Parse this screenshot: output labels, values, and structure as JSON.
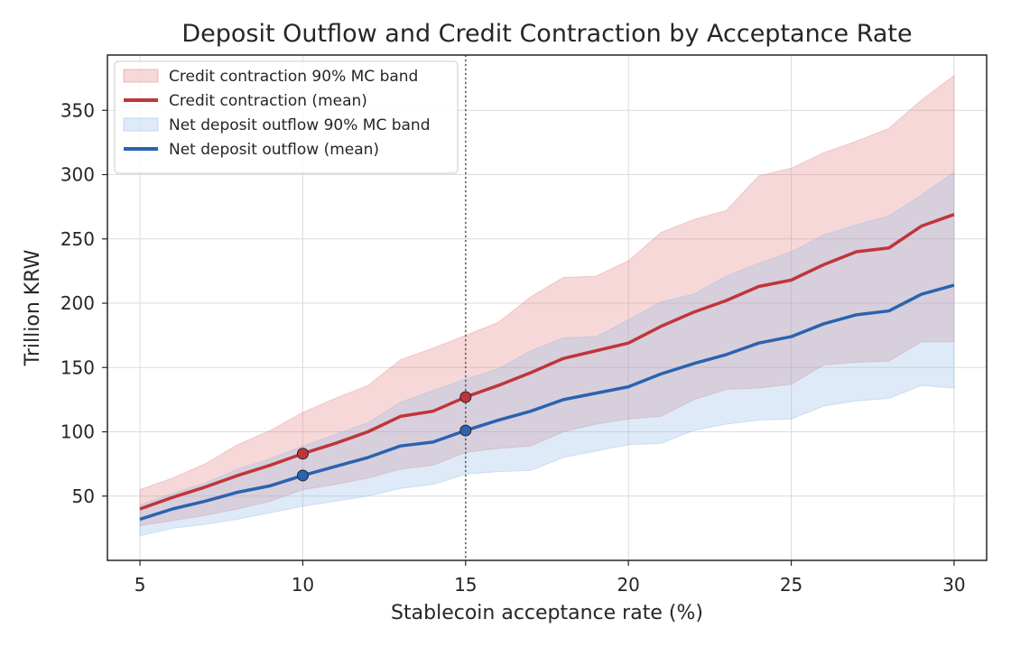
{
  "chart_data": {
    "type": "line",
    "title": "Deposit Outflow and Credit Contraction by Acceptance Rate",
    "xlabel": "Stablecoin acceptance rate (%)",
    "ylabel": "Trillion KRW",
    "xlim": [
      4,
      31
    ],
    "ylim": [
      0,
      393
    ],
    "xticks": [
      5,
      10,
      15,
      20,
      25,
      30
    ],
    "yticks": [
      50,
      100,
      150,
      200,
      250,
      300,
      350
    ],
    "grid": true,
    "legend_position": "top-left",
    "reference_line": {
      "x": 15,
      "style": "dotted"
    },
    "x": [
      5,
      6,
      7,
      8,
      9,
      10,
      11,
      12,
      13,
      14,
      15,
      16,
      17,
      18,
      19,
      20,
      21,
      22,
      23,
      24,
      25,
      26,
      27,
      28,
      29,
      30
    ],
    "series": [
      {
        "name": "Credit contraction (mean)",
        "color": "#c0353a",
        "values": [
          40,
          49,
          57,
          66,
          74,
          83,
          91,
          100,
          112,
          116,
          127,
          136,
          146,
          157,
          163,
          169,
          182,
          193,
          202,
          213,
          218,
          230,
          240,
          243,
          260,
          269
        ]
      },
      {
        "name": "Net deposit outflow (mean)",
        "color": "#2a63b0",
        "values": [
          32,
          40,
          46,
          53,
          58,
          66,
          73,
          80,
          89,
          92,
          101,
          109,
          116,
          125,
          130,
          135,
          145,
          153,
          160,
          169,
          174,
          184,
          191,
          194,
          207,
          214
        ]
      }
    ],
    "bands": [
      {
        "name": "Credit contraction 90% MC band",
        "color": "#e57f82",
        "lower": [
          27,
          31,
          35,
          40,
          46,
          55,
          59,
          64,
          71,
          74,
          84,
          87,
          89,
          100,
          106,
          110,
          112,
          125,
          133,
          134,
          137,
          152,
          154,
          155,
          170,
          170
        ],
        "upper": [
          55,
          64,
          75,
          90,
          101,
          115,
          126,
          136,
          156,
          165,
          175,
          185,
          205,
          220,
          221,
          233,
          255,
          265,
          272,
          299,
          305,
          317,
          326,
          336,
          358,
          377
        ]
      },
      {
        "name": "Net deposit outflow 90% MC band",
        "color": "#93b8e3",
        "lower": [
          19,
          25,
          28,
          32,
          37,
          42,
          46,
          50,
          56,
          59,
          67,
          69,
          70,
          80,
          85,
          90,
          91,
          101,
          106,
          109,
          110,
          120,
          124,
          126,
          136,
          134
        ],
        "upper": [
          43,
          52,
          60,
          71,
          79,
          89,
          98,
          107,
          123,
          132,
          141,
          149,
          163,
          173,
          174,
          187,
          201,
          207,
          221,
          231,
          240,
          253,
          261,
          268,
          284,
          302
        ]
      }
    ],
    "highlight_points": [
      {
        "series": "Credit contraction (mean)",
        "x": 10,
        "y": 83
      },
      {
        "series": "Credit contraction (mean)",
        "x": 15,
        "y": 127
      },
      {
        "series": "Net deposit outflow (mean)",
        "x": 10,
        "y": 66
      },
      {
        "series": "Net deposit outflow (mean)",
        "x": 15,
        "y": 101
      }
    ],
    "legend": [
      {
        "label": "Credit contraction 90% MC band",
        "kind": "band",
        "color": "#e57f82"
      },
      {
        "label": "Credit contraction (mean)",
        "kind": "line",
        "color": "#c0353a"
      },
      {
        "label": "Net deposit outflow 90% MC band",
        "kind": "band",
        "color": "#93b8e3"
      },
      {
        "label": "Net deposit outflow (mean)",
        "kind": "line",
        "color": "#2a63b0"
      }
    ]
  }
}
